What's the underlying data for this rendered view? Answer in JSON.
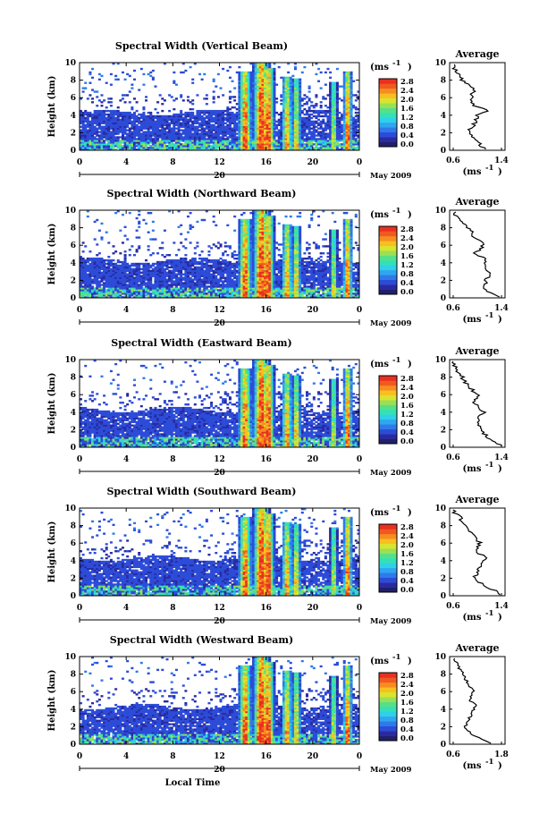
{
  "figure": {
    "xlabel": "Local Time",
    "date_label": "May 2009",
    "day_label": "20",
    "colorbar_unit": "(ms",
    "colorbar_unit_exp": "-1",
    "average_title": "Average",
    "average_xlabel": "(ms",
    "average_xlabel_exp": "-1",
    "colorbar_ticks": [
      "2.8",
      "2.4",
      "2.0",
      "1.6",
      "1.2",
      "0.8",
      "0.4",
      "0.0"
    ],
    "colorscale": [
      "#20206a",
      "#2a2aa0",
      "#2c4cd8",
      "#2f7ae8",
      "#2fa6f0",
      "#2fd0e8",
      "#33e0b8",
      "#55e088",
      "#9ae055",
      "#d9e430",
      "#f7c020",
      "#f78d20",
      "#f05a20",
      "#e83020"
    ]
  },
  "chart_data": [
    {
      "type": "heatmap",
      "title": "Spectral Width (Vertical Beam)",
      "xlabel": "Local Time",
      "ylabel": "Height (km)",
      "x_ticks": [
        "0",
        "4",
        "8",
        "12",
        "16",
        "20",
        "0"
      ],
      "y_ticks": [
        "0",
        "2",
        "4",
        "6",
        "8",
        "10"
      ],
      "xlim": [
        0,
        24
      ],
      "ylim": [
        0,
        10
      ],
      "zlim": [
        0.0,
        2.8
      ],
      "z_unit": "ms-1",
      "date": "20 May 2009",
      "average_profile": {
        "xlim": [
          0.6,
          1.4
        ],
        "x_ticks": [
          "0.6",
          "1.4"
        ],
        "y_ticks": [
          "0",
          "2",
          "4",
          "6",
          "8",
          "10"
        ],
        "height_km": [
          0.2,
          1,
          2,
          3,
          4,
          4.5,
          5,
          6,
          7,
          8,
          9,
          9.5
        ],
        "value": [
          1.1,
          1.0,
          0.85,
          0.95,
          1.0,
          1.2,
          0.95,
          0.9,
          0.95,
          0.75,
          0.65,
          0.62
        ]
      }
    },
    {
      "type": "heatmap",
      "title": "Spectral Width (Northward Beam)",
      "xlabel": "Local Time",
      "ylabel": "Height (km)",
      "x_ticks": [
        "0",
        "4",
        "8",
        "12",
        "16",
        "20",
        "0"
      ],
      "y_ticks": [
        "0",
        "2",
        "4",
        "6",
        "8",
        "10"
      ],
      "xlim": [
        0,
        24
      ],
      "ylim": [
        0,
        10
      ],
      "zlim": [
        0.0,
        2.8
      ],
      "z_unit": "ms-1",
      "date": "20 May 2009",
      "average_profile": {
        "xlim": [
          0.6,
          1.4
        ],
        "x_ticks": [
          "0.6",
          "1.4"
        ],
        "y_ticks": [
          "0",
          "2",
          "4",
          "6",
          "8",
          "10"
        ],
        "height_km": [
          0.2,
          1,
          2,
          3,
          4,
          4.5,
          5,
          6,
          7,
          8,
          9,
          9.5
        ],
        "value": [
          1.35,
          1.1,
          1.15,
          1.2,
          1.1,
          1.15,
          0.95,
          1.1,
          0.95,
          0.85,
          0.7,
          0.62
        ]
      }
    },
    {
      "type": "heatmap",
      "title": "Spectral Width (Eastward Beam)",
      "xlabel": "Local Time",
      "ylabel": "Height (km)",
      "x_ticks": [
        "0",
        "4",
        "8",
        "12",
        "16",
        "20",
        "0"
      ],
      "y_ticks": [
        "0",
        "2",
        "4",
        "6",
        "8",
        "10"
      ],
      "xlim": [
        0,
        24
      ],
      "ylim": [
        0,
        10
      ],
      "zlim": [
        0.0,
        2.8
      ],
      "z_unit": "ms-1",
      "date": "20 May 2009",
      "average_profile": {
        "xlim": [
          0.6,
          1.4
        ],
        "x_ticks": [
          "0.6",
          "1.4"
        ],
        "y_ticks": [
          "0",
          "2",
          "4",
          "6",
          "8",
          "10"
        ],
        "height_km": [
          0.2,
          1,
          2,
          3,
          4,
          4.5,
          5,
          6,
          7,
          8,
          9,
          9.5
        ],
        "value": [
          1.4,
          1.2,
          1.05,
          1.0,
          1.1,
          1.05,
          0.95,
          1.0,
          0.85,
          0.75,
          0.65,
          0.6
        ]
      }
    },
    {
      "type": "heatmap",
      "title": "Spectral Width (Southward Beam)",
      "xlabel": "Local Time",
      "ylabel": "Height (km)",
      "x_ticks": [
        "0",
        "4",
        "8",
        "12",
        "16",
        "20",
        "0"
      ],
      "y_ticks": [
        "0",
        "2",
        "4",
        "6",
        "8",
        "10"
      ],
      "xlim": [
        0,
        24
      ],
      "ylim": [
        0,
        10
      ],
      "zlim": [
        0.0,
        2.8
      ],
      "z_unit": "ms-1",
      "date": "20 May 2009",
      "average_profile": {
        "xlim": [
          0.6,
          1.4
        ],
        "x_ticks": [
          "0.6",
          "1.4"
        ],
        "y_ticks": [
          "0",
          "2",
          "4",
          "6",
          "8",
          "10"
        ],
        "height_km": [
          0.2,
          1,
          2,
          3,
          4,
          4.5,
          5,
          6,
          7,
          8,
          9,
          9.5
        ],
        "value": [
          1.4,
          1.15,
          0.95,
          1.0,
          1.1,
          1.15,
          0.95,
          1.05,
          0.9,
          0.8,
          0.7,
          0.62
        ]
      }
    },
    {
      "type": "heatmap",
      "title": "Spectral Width (Westward Beam)",
      "xlabel": "Local Time",
      "ylabel": "Height (km)",
      "x_ticks": [
        "0",
        "4",
        "8",
        "12",
        "16",
        "20",
        "0"
      ],
      "y_ticks": [
        "0",
        "2",
        "4",
        "6",
        "8",
        "10"
      ],
      "xlim": [
        0,
        24
      ],
      "ylim": [
        0,
        10
      ],
      "zlim": [
        0.0,
        2.8
      ],
      "z_unit": "ms-1",
      "date": "20 May 2009",
      "average_profile": {
        "xlim": [
          0.6,
          1.8
        ],
        "x_ticks": [
          "0.6",
          "1.8"
        ],
        "y_ticks": [
          "0",
          "2",
          "4",
          "6",
          "8",
          "10"
        ],
        "height_km": [
          0.2,
          1,
          2,
          3,
          4,
          4.5,
          5,
          6,
          7,
          8,
          9,
          9.5
        ],
        "value": [
          1.5,
          1.1,
          0.9,
          1.0,
          1.1,
          1.2,
          1.0,
          1.1,
          0.95,
          0.85,
          0.7,
          0.65
        ]
      }
    }
  ]
}
